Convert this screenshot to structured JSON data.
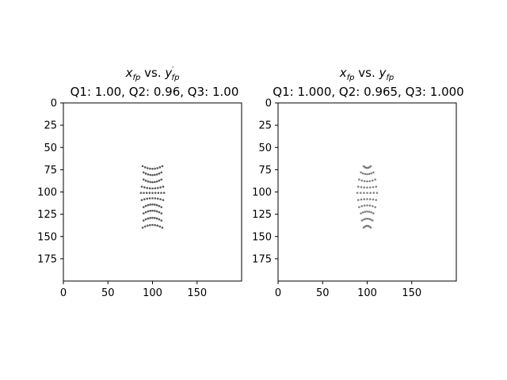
{
  "chart_data": [
    {
      "type": "scatter",
      "title_main": "x",
      "title_main_sub": "fp",
      "title_vs": "vs.",
      "title_y": "y",
      "title_y_prime": "′",
      "title_y_sub": "fp",
      "subtitle": "Q1: 1.00, Q2: 0.96, Q3: 1.00",
      "xlim": [
        0,
        200
      ],
      "ylim": [
        200,
        0
      ],
      "xticks": [
        "0",
        "50",
        "100",
        "150"
      ],
      "yticks": [
        "0",
        "25",
        "50",
        "75",
        "100",
        "125",
        "150",
        "175"
      ],
      "xtick_values": [
        0,
        50,
        100,
        150
      ],
      "ytick_values": [
        0,
        25,
        50,
        75,
        100,
        125,
        150,
        175
      ],
      "marker_color": "#3a3a3a",
      "pattern": {
        "center_x": 100,
        "rows_y": [
          71,
          78,
          86,
          94,
          101,
          109,
          117,
          124,
          132,
          140
        ],
        "half_widths": [
          11,
          10,
          10,
          12,
          13,
          12,
          10,
          10,
          10,
          11
        ],
        "curvature": [
          -3,
          -3,
          -3,
          -2,
          0,
          2,
          3,
          3,
          3,
          3
        ],
        "points_per_row": 9
      }
    },
    {
      "type": "scatter",
      "title_main": "x",
      "title_main_sub": "fp",
      "title_vs": "vs.",
      "title_y": "y",
      "title_y_prime": "",
      "title_y_sub": "fp",
      "subtitle": "Q1: 1.000, Q2: 0.965, Q3: 1.000",
      "xlim": [
        0,
        200
      ],
      "ylim": [
        200,
        0
      ],
      "xticks": [
        "0",
        "50",
        "100",
        "150"
      ],
      "yticks": [
        "0",
        "25",
        "50",
        "75",
        "100",
        "125",
        "150",
        "175"
      ],
      "xtick_values": [
        0,
        50,
        100,
        150
      ],
      "ytick_values": [
        0,
        25,
        50,
        75,
        100,
        125,
        150,
        175
      ],
      "marker_color": "#6a6a6a",
      "pattern": {
        "center_x": 100,
        "rows_y": [
          71,
          78,
          86,
          94,
          101,
          109,
          117,
          124,
          132,
          140
        ],
        "half_widths": [
          4,
          7,
          9,
          10,
          11,
          10,
          9,
          7,
          6,
          4
        ],
        "curvature": [
          -2,
          -2,
          -2,
          -1,
          0,
          1,
          2,
          2,
          2,
          2
        ],
        "points_per_row": 7
      }
    }
  ]
}
